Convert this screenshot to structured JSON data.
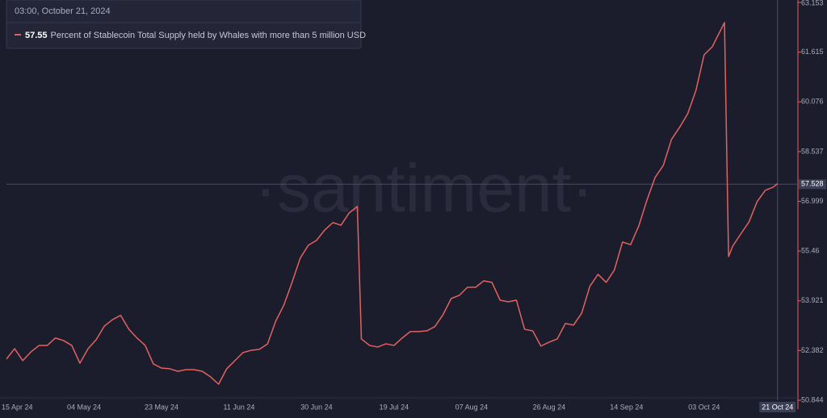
{
  "chart_data": {
    "type": "line",
    "tooltip_title": "03:00, October 21, 2024",
    "watermark": "·santiment·",
    "x": [
      "15 Apr 24",
      "17 Apr 24",
      "19 Apr 24",
      "21 Apr 24",
      "23 Apr 24",
      "25 Apr 24",
      "27 Apr 24",
      "29 Apr 24",
      "01 May 24",
      "03 May 24",
      "05 May 24",
      "07 May 24",
      "09 May 24",
      "11 May 24",
      "13 May 24",
      "15 May 24",
      "17 May 24",
      "19 May 24",
      "21 May 24",
      "23 May 24",
      "25 May 24",
      "27 May 24",
      "29 May 24",
      "31 May 24",
      "02 Jun 24",
      "04 Jun 24",
      "06 Jun 24",
      "08 Jun 24",
      "10 Jun 24",
      "12 Jun 24",
      "14 Jun 24",
      "16 Jun 24",
      "18 Jun 24",
      "20 Jun 24",
      "22 Jun 24",
      "24 Jun 24",
      "26 Jun 24",
      "28 Jun 24",
      "30 Jun 24",
      "02 Jul 24",
      "04 Jul 24",
      "06 Jul 24",
      "08 Jul 24",
      "10 Jul 24",
      "11 Jul 24",
      "13 Jul 24",
      "15 Jul 24",
      "17 Jul 24",
      "19 Jul 24",
      "21 Jul 24",
      "23 Jul 24",
      "25 Jul 24",
      "27 Jul 24",
      "29 Jul 24",
      "31 Jul 24",
      "02 Aug 24",
      "04 Aug 24",
      "06 Aug 24",
      "08 Aug 24",
      "10 Aug 24",
      "12 Aug 24",
      "14 Aug 24",
      "16 Aug 24",
      "18 Aug 24",
      "20 Aug 24",
      "22 Aug 24",
      "24 Aug 24",
      "26 Aug 24",
      "28 Aug 24",
      "30 Aug 24",
      "01 Sep 24",
      "03 Sep 24",
      "05 Sep 24",
      "07 Sep 24",
      "09 Sep 24",
      "11 Sep 24",
      "13 Sep 24",
      "15 Sep 24",
      "17 Sep 24",
      "19 Sep 24",
      "21 Sep 24",
      "23 Sep 24",
      "25 Sep 24",
      "27 Sep 24",
      "29 Sep 24",
      "01 Oct 24",
      "03 Oct 24",
      "05 Oct 24",
      "07 Oct 24",
      "08 Oct 24",
      "09 Oct 24",
      "10 Oct 24",
      "12 Oct 24",
      "14 Oct 24",
      "16 Oct 24",
      "18 Oct 24",
      "20 Oct 24",
      "21 Oct 24"
    ],
    "series": [
      {
        "name": "Percent of Stablecoin Total Supply held by Whales with more than 5 million USD",
        "color": "#e2625f",
        "values": [
          52.12,
          52.44,
          52.07,
          52.34,
          52.54,
          52.54,
          52.77,
          52.69,
          52.54,
          51.99,
          52.44,
          52.72,
          53.14,
          53.34,
          53.47,
          53.04,
          52.77,
          52.54,
          51.97,
          51.84,
          51.82,
          51.74,
          51.79,
          51.79,
          51.74,
          51.57,
          51.34,
          51.82,
          52.07,
          52.32,
          52.39,
          52.42,
          52.59,
          53.29,
          53.79,
          54.49,
          55.24,
          55.64,
          55.79,
          56.11,
          56.34,
          56.26,
          56.64,
          56.84,
          52.74,
          52.54,
          52.49,
          52.59,
          52.54,
          52.77,
          52.97,
          52.97,
          52.99,
          53.12,
          53.49,
          53.99,
          54.09,
          54.34,
          54.34,
          54.54,
          54.49,
          53.94,
          53.89,
          53.94,
          53.04,
          52.99,
          52.52,
          52.64,
          52.74,
          53.22,
          53.17,
          53.54,
          54.37,
          54.74,
          54.49,
          54.87,
          55.74,
          55.66,
          56.24,
          57.04,
          57.74,
          58.11,
          58.91,
          59.29,
          59.71,
          60.43,
          61.53,
          61.78,
          62.28,
          62.53,
          55.29,
          55.61,
          55.99,
          56.36,
          56.99,
          57.34,
          57.44,
          57.55
        ]
      }
    ],
    "xlim": [
      "15 Apr 24",
      "26 Oct 24"
    ],
    "xticks": [
      "15 Apr 24",
      "04 May 24",
      "23 May 24",
      "11 Jun 24",
      "30 Jun 24",
      "19 Jul 24",
      "07 Aug 24",
      "26 Aug 24",
      "14 Sep 24",
      "03 Oct 24"
    ],
    "ylim": [
      50.844,
      63.153
    ],
    "yticks": [
      50.844,
      52.382,
      53.921,
      55.46,
      56.999,
      58.537,
      60.076,
      61.615,
      63.153
    ],
    "crosshair": {
      "x": "21 Oct 24",
      "y": 57.528
    },
    "grid": false
  }
}
